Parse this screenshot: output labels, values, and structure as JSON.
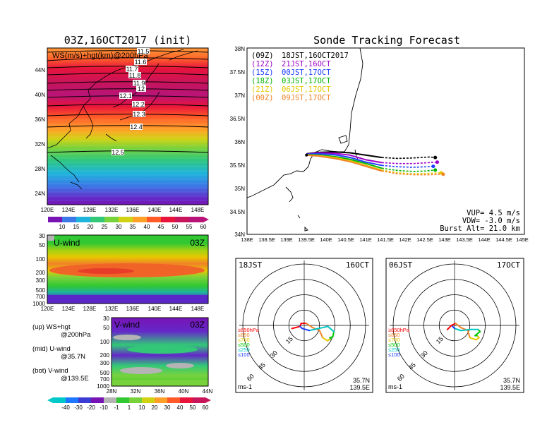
{
  "left_title": "03Z,16OCT2017 (init)",
  "right_title": "Sonde Tracking Forecast",
  "ws_panel": {
    "label": "WS(m/s)+hgt(km)@200hPa",
    "x_ticks": [
      "120E",
      "124E",
      "128E",
      "132E",
      "136E",
      "140E",
      "144E",
      "148E"
    ],
    "y_ticks": [
      "44N",
      "40N",
      "36N",
      "32N",
      "28N",
      "24N"
    ],
    "contours": [
      "11.5",
      "11.6",
      "11.7",
      "11.8",
      "11.9",
      "12",
      "12.1",
      "12.2",
      "12.3",
      "12.4",
      "12.5"
    ],
    "colorbar_labels": [
      "10",
      "15",
      "20",
      "25",
      "30",
      "35",
      "40",
      "45",
      "50",
      "55",
      "60"
    ]
  },
  "u_panel": {
    "label": "U-wind",
    "time": "03Z",
    "x_ticks": [
      "120E",
      "124E",
      "128E",
      "132E",
      "136E",
      "140E",
      "144E",
      "148E"
    ],
    "y_ticks": [
      "30",
      "50",
      "100",
      "200",
      "300",
      "500",
      "700",
      "1000"
    ]
  },
  "v_panel": {
    "label": "V-wind",
    "time": "03Z",
    "x_ticks": [
      "28N",
      "32N",
      "36N",
      "40N",
      "44N"
    ],
    "y_ticks": [
      "30",
      "50",
      "100",
      "200",
      "300",
      "500",
      "700",
      "1000"
    ]
  },
  "legend_notes": [
    {
      "a": "(up) WS+hgt",
      "b": "@200hPa"
    },
    {
      "a": "(mid) U-wind",
      "b": "@35.7N"
    },
    {
      "a": "(bot) V-wind",
      "b": "@139.5E"
    }
  ],
  "bottom_colorbar_labels": [
    "-40",
    "-30",
    "-20",
    "-10",
    "-1",
    "1",
    "10",
    "20",
    "30",
    "40",
    "50",
    "60"
  ],
  "track_panel": {
    "x_ticks": [
      "138E",
      "138.5E",
      "139E",
      "139.5E",
      "140E",
      "140.5E",
      "141E",
      "141.5E",
      "142E",
      "142.5E",
      "143E",
      "143.5E",
      "144E",
      "144.5E",
      "145E"
    ],
    "y_ticks": [
      "38N",
      "37.5N",
      "37N",
      "36.5N",
      "36N",
      "35.5N",
      "35N",
      "34.5N",
      "34N"
    ],
    "legend": [
      {
        "z": "(09Z)",
        "t": "18JST,16OCT2017",
        "color": "#000000"
      },
      {
        "z": "(12Z)",
        "t": "21JST,16OCT",
        "color": "#a000c8"
      },
      {
        "z": "(15Z)",
        "t": "00JST,17OCT",
        "color": "#1e3cff"
      },
      {
        "z": "(18Z)",
        "t": "03JST,17OCT",
        "color": "#00b400"
      },
      {
        "z": "(21Z)",
        "t": "06JST,17OCT",
        "color": "#e6c800"
      },
      {
        "z": "(00Z)",
        "t": "09JST,17OCT",
        "color": "#f08228"
      }
    ],
    "params": [
      "VUP= 4.5 m/s",
      "VDW= -3.0 m/s",
      "Burst Alt= 21.0 km"
    ]
  },
  "hodo_left": {
    "time_label": "18JST",
    "date_label": "16OCT",
    "ring_labels": [
      "15",
      "30",
      "45",
      "60"
    ],
    "levels": [
      "≥850hPa",
      "≤850",
      "≤700",
      "≤500",
      "≤250",
      "≤100"
    ],
    "level_colors": [
      "#ff0000",
      "#f08228",
      "#e6c800",
      "#00c800",
      "#00c8c8",
      "#1e3cff"
    ],
    "unit": "ms-1",
    "loc_lat": "35.7N",
    "loc_lon": "139.5E"
  },
  "hodo_right": {
    "time_label": "06JST",
    "date_label": "17OCT",
    "ring_labels": [
      "15",
      "30",
      "45",
      "60"
    ],
    "levels": [
      "≥850hPa",
      "≤850",
      "≤700",
      "≤500",
      "≤250",
      "≤100"
    ],
    "level_colors": [
      "#ff0000",
      "#f08228",
      "#e6c800",
      "#00c800",
      "#00c8c8",
      "#1e3cff"
    ],
    "unit": "ms-1",
    "loc_lat": "35.7N",
    "loc_lon": "139.5E"
  },
  "chart_data": [
    {
      "type": "heatmap",
      "title": "03Z,16OCT2017 (init)",
      "variable": "WS(m/s)+hgt(km)@200hPa",
      "xlim": [
        120,
        150
      ],
      "ylim": [
        22,
        48
      ],
      "colorbar": [
        10,
        15,
        20,
        25,
        30,
        35,
        40,
        45,
        50,
        55,
        60
      ],
      "height_contours_km": [
        11.5,
        11.6,
        11.7,
        11.8,
        11.9,
        12.0,
        12.1,
        12.2,
        12.3,
        12.4,
        12.5
      ],
      "jet_core_ws": 55,
      "jet_core_lat": 38
    },
    {
      "type": "heatmap",
      "variable": "U-wind",
      "section": "@35.7N",
      "x_range": [
        120,
        150
      ],
      "levels_hPa": [
        30,
        50,
        100,
        200,
        300,
        500,
        700,
        1000
      ],
      "max_u": 50,
      "max_level_hPa": 200
    },
    {
      "type": "heatmap",
      "variable": "V-wind",
      "section": "@139.5E",
      "x_range": [
        28,
        44
      ],
      "levels_hPa": [
        30,
        50,
        100,
        200,
        300,
        500,
        700,
        1000
      ],
      "colorbar": [
        -40,
        -30,
        -20,
        -10,
        -1,
        1,
        10,
        20,
        30,
        40,
        50,
        60
      ]
    },
    {
      "type": "line",
      "title": "Sonde Tracking Forecast",
      "xlim": [
        138,
        145
      ],
      "ylim": [
        34,
        38
      ],
      "launch": [
        139.5,
        35.7
      ],
      "series": [
        {
          "name": "18JST,16OCT2017",
          "color": "#000000",
          "x": [
            139.5,
            139.8,
            140.2,
            140.6,
            141.0,
            141.4,
            141.8,
            142.2,
            142.6,
            142.75
          ],
          "y": [
            35.73,
            35.76,
            35.77,
            35.75,
            35.7,
            35.65,
            35.63,
            35.64,
            35.66,
            35.65
          ]
        },
        {
          "name": "21JST,16OCT",
          "color": "#a000c8",
          "x": [
            139.5,
            139.8,
            140.2,
            140.6,
            141.0,
            141.4,
            141.8,
            142.2,
            142.6,
            142.8
          ],
          "y": [
            35.72,
            35.75,
            35.74,
            35.7,
            35.6,
            35.54,
            35.52,
            35.52,
            35.54,
            35.55
          ]
        },
        {
          "name": "00JST,17OCT",
          "color": "#1e3cff",
          "x": [
            139.5,
            139.8,
            140.2,
            140.6,
            141.0,
            141.4,
            141.8,
            142.2,
            142.5,
            142.7
          ],
          "y": [
            35.72,
            35.73,
            35.71,
            35.65,
            35.55,
            35.48,
            35.45,
            35.44,
            35.45,
            35.46
          ]
        },
        {
          "name": "03JST,17OCT",
          "color": "#00b400",
          "x": [
            139.5,
            139.8,
            140.2,
            140.6,
            141.0,
            141.4,
            141.8,
            142.2,
            142.5,
            142.75
          ],
          "y": [
            35.71,
            35.7,
            35.67,
            35.61,
            35.52,
            35.42,
            35.37,
            35.35,
            35.36,
            35.38
          ]
        },
        {
          "name": "06JST,17OCT",
          "color": "#e6c800",
          "x": [
            139.5,
            139.8,
            140.2,
            140.6,
            141.0,
            141.4,
            141.8,
            142.2,
            142.6,
            142.9
          ],
          "y": [
            35.7,
            35.69,
            35.65,
            35.58,
            35.48,
            35.38,
            35.32,
            35.3,
            35.31,
            35.32
          ]
        },
        {
          "name": "09JST,17OCT",
          "color": "#f08228",
          "x": [
            139.5,
            139.8,
            140.2,
            140.6,
            141.0,
            141.4,
            141.8,
            142.2,
            142.6,
            142.95
          ],
          "y": [
            35.7,
            35.68,
            35.63,
            35.56,
            35.46,
            35.36,
            35.3,
            35.28,
            35.28,
            35.29
          ]
        }
      ],
      "params": {
        "VUP_m_s": 4.5,
        "VDW_m_s": -3.0,
        "burst_alt_km": 21.0
      }
    },
    {
      "type": "scatter",
      "title": "Hodograph 18JST 16OCT",
      "ring_speeds_ms": [
        15,
        30,
        45,
        60
      ],
      "u": [
        -12,
        -4,
        -3,
        2,
        8,
        15,
        18,
        23,
        24,
        26,
        25,
        28,
        29,
        23,
        14,
        5,
        -2,
        -4
      ],
      "v": [
        -3,
        -1,
        2,
        2,
        -2,
        -5,
        -12,
        -15,
        -14,
        -13,
        -12,
        -11,
        -6,
        -1,
        -3,
        -5,
        -3,
        -1
      ],
      "segment_colors": [
        "#ff0000",
        "#f08228",
        "#e6c800",
        "#00c800",
        "#00c8c8",
        "#1e3cff"
      ]
    },
    {
      "type": "scatter",
      "title": "Hodograph 06JST 17OCT",
      "ring_speeds_ms": [
        15,
        30,
        45,
        60
      ],
      "u": [
        -7,
        -6,
        -3,
        1,
        6,
        13,
        15,
        21,
        24,
        22,
        20,
        25,
        23,
        16,
        6,
        0,
        -2
      ],
      "v": [
        -4,
        -3,
        0,
        2,
        -2,
        -5,
        -12,
        -14,
        -12,
        -10,
        -10,
        -6,
        -4,
        -4,
        -5,
        -3,
        -1
      ],
      "segment_colors": [
        "#ff0000",
        "#f08228",
        "#e6c800",
        "#00c800",
        "#00c8c8",
        "#1e3cff"
      ]
    }
  ]
}
